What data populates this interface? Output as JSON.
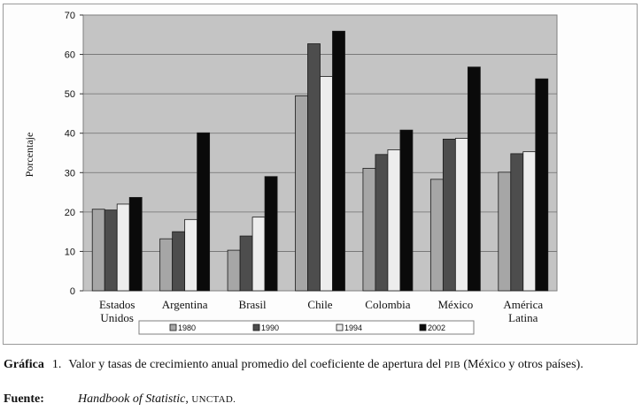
{
  "chart_data": {
    "type": "bar",
    "title": "",
    "xlabel": "",
    "ylabel": "Porcentaje",
    "ylim": [
      0,
      70
    ],
    "yticks": [
      0,
      10,
      20,
      30,
      40,
      50,
      60,
      70
    ],
    "grid": true,
    "legend_position": "bottom",
    "categories": [
      [
        "Estados",
        "Unidos"
      ],
      [
        "Argentina"
      ],
      [
        "Brasil"
      ],
      [
        "Chile"
      ],
      [
        "Colombia"
      ],
      [
        "México"
      ],
      [
        "América",
        "Latina"
      ]
    ],
    "series": [
      {
        "name": "1980",
        "color": "#a6a6a6",
        "values": [
          20.7,
          13.2,
          10.3,
          49.5,
          31.1,
          28.3,
          30.1
        ]
      },
      {
        "name": "1990",
        "color": "#4d4d4d",
        "values": [
          20.5,
          15.0,
          13.9,
          62.7,
          34.6,
          38.5,
          34.8
        ]
      },
      {
        "name": "1994",
        "color": "#ededed",
        "values": [
          22.0,
          18.1,
          18.7,
          54.4,
          35.8,
          38.7,
          35.3
        ]
      },
      {
        "name": "2002",
        "color": "#0a0a0a",
        "values": [
          23.7,
          40.1,
          29.0,
          65.9,
          40.8,
          56.8,
          53.8
        ]
      }
    ]
  },
  "caption": {
    "label": "Gráfica",
    "number": "1.",
    "text_main": "Valor y tasas de crecimiento anual promedio del coeficiente de apertura del ",
    "text_abbr": "PIB",
    "text_end": " (México y otros países)."
  },
  "source": {
    "label": "Fuente:",
    "title": "Handbook of Statistic",
    "separator": ", ",
    "org": "UNCTAD."
  }
}
